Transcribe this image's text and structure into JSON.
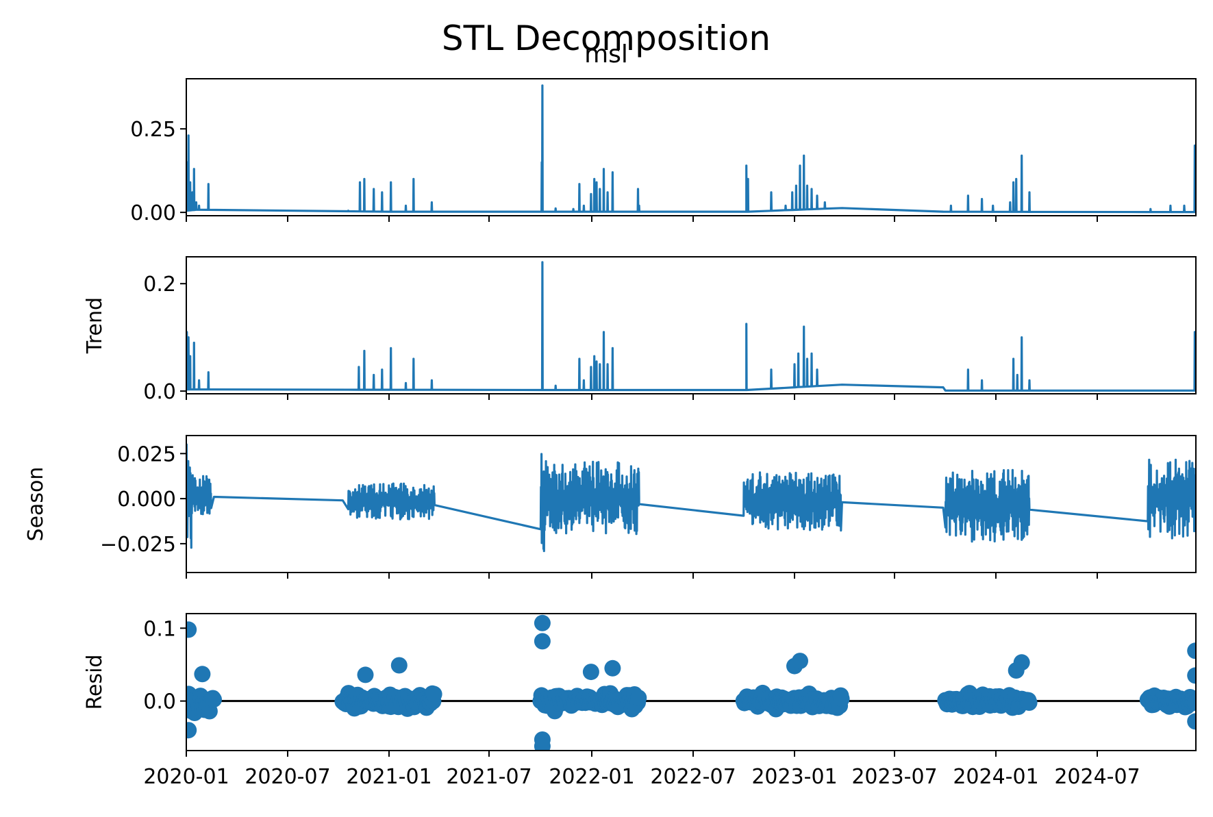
{
  "figure": {
    "title": "STL Decomposition",
    "subtitle": "msl"
  },
  "colors": {
    "series": "#1f77b4",
    "axes": "#000000",
    "background": "#ffffff",
    "zero_line": "#000000"
  },
  "chart_data": [
    {
      "type": "line",
      "panel": "observed",
      "title": "msl",
      "ylabel": "",
      "ylim": [
        -0.01,
        0.4
      ],
      "yticks": [
        0.0,
        0.25
      ],
      "ytick_labels": [
        "0.00",
        "0.25"
      ],
      "x_type": "date",
      "x_range": [
        "2020-01-01",
        "2024-12-31"
      ],
      "xtick_labels": [],
      "baseline": [
        [
          "2020-01-01",
          0.005
        ],
        [
          "2020-01-20",
          0.008
        ],
        [
          "2021-01-01",
          0.002
        ],
        [
          "2021-10-20",
          0.002
        ],
        [
          "2022-10-10",
          0.002
        ],
        [
          "2023-04-01",
          0.013
        ],
        [
          "2023-10-01",
          0.002
        ],
        [
          "2024-10-01",
          0.001
        ],
        [
          "2024-12-31",
          0.001
        ]
      ],
      "spikes": [
        [
          "2020-01-02",
          0.15
        ],
        [
          "2020-01-05",
          0.23
        ],
        [
          "2020-01-08",
          0.09
        ],
        [
          "2020-01-12",
          0.06
        ],
        [
          "2020-01-15",
          0.13
        ],
        [
          "2020-01-19",
          0.03
        ],
        [
          "2020-01-24",
          0.02
        ],
        [
          "2020-02-10",
          0.085
        ],
        [
          "2020-10-20",
          0.005
        ],
        [
          "2020-11-10",
          0.09
        ],
        [
          "2020-11-18",
          0.1
        ],
        [
          "2020-12-05",
          0.07
        ],
        [
          "2020-12-20",
          0.06
        ],
        [
          "2021-01-05",
          0.09
        ],
        [
          "2021-02-01",
          0.02
        ],
        [
          "2021-02-15",
          0.1
        ],
        [
          "2021-03-20",
          0.03
        ],
        [
          "2021-10-05",
          0.15
        ],
        [
          "2021-10-06",
          0.38
        ],
        [
          "2021-10-30",
          0.012
        ],
        [
          "2021-12-01",
          0.01
        ],
        [
          "2021-12-12",
          0.085
        ],
        [
          "2021-12-20",
          0.02
        ],
        [
          "2022-01-02",
          0.055
        ],
        [
          "2022-01-08",
          0.1
        ],
        [
          "2022-01-12",
          0.09
        ],
        [
          "2022-01-18",
          0.07
        ],
        [
          "2022-01-25",
          0.13
        ],
        [
          "2022-02-01",
          0.06
        ],
        [
          "2022-02-10",
          0.12
        ],
        [
          "2022-03-28",
          0.07
        ],
        [
          "2022-03-30",
          0.02
        ],
        [
          "2022-10-10",
          0.14
        ],
        [
          "2022-10-13",
          0.1
        ],
        [
          "2022-11-24",
          0.06
        ],
        [
          "2022-12-20",
          0.02
        ],
        [
          "2023-01-01",
          0.06
        ],
        [
          "2023-01-08",
          0.08
        ],
        [
          "2023-01-15",
          0.14
        ],
        [
          "2023-01-22",
          0.17
        ],
        [
          "2023-01-28",
          0.08
        ],
        [
          "2023-02-05",
          0.07
        ],
        [
          "2023-02-15",
          0.05
        ],
        [
          "2023-03-01",
          0.03
        ],
        [
          "2023-10-15",
          0.02
        ],
        [
          "2023-11-15",
          0.05
        ],
        [
          "2023-12-10",
          0.04
        ],
        [
          "2023-12-30",
          0.02
        ],
        [
          "2024-01-30",
          0.03
        ],
        [
          "2024-02-05",
          0.09
        ],
        [
          "2024-02-10",
          0.1
        ],
        [
          "2024-02-20",
          0.17
        ],
        [
          "2024-03-05",
          0.06
        ],
        [
          "2024-10-10",
          0.01
        ],
        [
          "2024-11-15",
          0.02
        ],
        [
          "2024-12-10",
          0.02
        ],
        [
          "2024-12-29",
          0.2
        ],
        [
          "2024-12-30",
          0.12
        ]
      ]
    },
    {
      "type": "line",
      "panel": "trend",
      "title": "",
      "ylabel": "Trend",
      "ylim": [
        -0.005,
        0.25
      ],
      "yticks": [
        0.0,
        0.2
      ],
      "ytick_labels": [
        "0.0",
        "0.2"
      ],
      "x_type": "date",
      "x_range": [
        "2020-01-01",
        "2024-12-31"
      ],
      "xtick_labels": [],
      "baseline": [
        [
          "2020-01-01",
          0.003
        ],
        [
          "2020-02-20",
          0.003
        ],
        [
          "2021-10-20",
          0.002
        ],
        [
          "2022-10-10",
          0.002
        ],
        [
          "2023-04-01",
          0.012
        ],
        [
          "2023-10-01",
          0.007
        ],
        [
          "2023-10-05",
          0.001
        ],
        [
          "2024-12-31",
          0.001
        ]
      ],
      "spikes": [
        [
          "2020-01-02",
          0.11
        ],
        [
          "2020-01-05",
          0.1
        ],
        [
          "2020-01-08",
          0.065
        ],
        [
          "2020-01-15",
          0.09
        ],
        [
          "2020-01-24",
          0.02
        ],
        [
          "2020-02-10",
          0.035
        ],
        [
          "2020-11-08",
          0.045
        ],
        [
          "2020-11-18",
          0.075
        ],
        [
          "2020-12-05",
          0.03
        ],
        [
          "2020-12-20",
          0.04
        ],
        [
          "2021-01-05",
          0.08
        ],
        [
          "2021-02-01",
          0.015
        ],
        [
          "2021-02-15",
          0.06
        ],
        [
          "2021-03-20",
          0.02
        ],
        [
          "2021-10-06",
          0.24
        ],
        [
          "2021-10-30",
          0.01
        ],
        [
          "2021-12-12",
          0.06
        ],
        [
          "2021-12-20",
          0.02
        ],
        [
          "2022-01-02",
          0.045
        ],
        [
          "2022-01-08",
          0.065
        ],
        [
          "2022-01-12",
          0.055
        ],
        [
          "2022-01-18",
          0.05
        ],
        [
          "2022-01-25",
          0.11
        ],
        [
          "2022-02-01",
          0.05
        ],
        [
          "2022-02-10",
          0.08
        ],
        [
          "2022-10-10",
          0.125
        ],
        [
          "2022-11-24",
          0.04
        ],
        [
          "2023-01-05",
          0.05
        ],
        [
          "2023-01-12",
          0.07
        ],
        [
          "2023-01-22",
          0.12
        ],
        [
          "2023-01-28",
          0.06
        ],
        [
          "2023-02-05",
          0.07
        ],
        [
          "2023-02-15",
          0.04
        ],
        [
          "2023-11-15",
          0.04
        ],
        [
          "2023-12-10",
          0.02
        ],
        [
          "2024-02-05",
          0.06
        ],
        [
          "2024-02-12",
          0.03
        ],
        [
          "2024-02-20",
          0.1
        ],
        [
          "2024-03-05",
          0.02
        ],
        [
          "2024-12-29",
          0.11
        ]
      ]
    },
    {
      "type": "line",
      "panel": "seasonal",
      "title": "",
      "ylabel": "Season",
      "ylim": [
        -0.041,
        0.035
      ],
      "yticks": [
        -0.025,
        0.0,
        0.025
      ],
      "ytick_labels": [
        "−0.025",
        "0.000",
        "0.025"
      ],
      "x_type": "date",
      "x_range": [
        "2020-01-01",
        "2024-12-31"
      ],
      "xtick_labels": [],
      "baseline": [
        [
          "2020-01-01",
          0.001
        ],
        [
          "2020-02-20",
          0.001
        ],
        [
          "2020-10-10",
          -0.001
        ],
        [
          "2021-03-20",
          -0.002
        ],
        [
          "2021-10-06",
          0.001
        ],
        [
          "2022-03-30",
          0.0
        ],
        [
          "2022-10-10",
          -0.001
        ],
        [
          "2023-04-01",
          -0.002
        ],
        [
          "2023-10-01",
          -0.005
        ],
        [
          "2024-10-10",
          0.0
        ],
        [
          "2024-12-31",
          0.0
        ]
      ],
      "oscillations": [
        {
          "start": "2020-01-01",
          "end": "2020-01-10",
          "amplitude": 0.03
        },
        {
          "start": "2020-01-10",
          "end": "2020-02-15",
          "amplitude": 0.012
        },
        {
          "start": "2020-10-20",
          "end": "2021-03-25",
          "amplitude": 0.01
        },
        {
          "start": "2021-10-03",
          "end": "2021-10-10",
          "amplitude": 0.036
        },
        {
          "start": "2021-10-10",
          "end": "2022-03-30",
          "amplitude": 0.02
        },
        {
          "start": "2022-10-05",
          "end": "2023-03-30",
          "amplitude": 0.016
        },
        {
          "start": "2023-10-05",
          "end": "2024-03-05",
          "amplitude": 0.02
        },
        {
          "start": "2024-10-05",
          "end": "2024-12-31",
          "amplitude": 0.022
        }
      ]
    },
    {
      "type": "scatter",
      "panel": "resid",
      "title": "",
      "ylabel": "Resid",
      "ylim": [
        -0.068,
        0.12
      ],
      "yticks": [
        0.0,
        0.1
      ],
      "ytick_labels": [
        "0.0",
        "0.1"
      ],
      "x_type": "date",
      "x_range": [
        "2020-01-01",
        "2024-12-31"
      ],
      "xtick_labels": [
        "2020-01",
        "2020-07",
        "2021-01",
        "2021-07",
        "2022-01",
        "2022-07",
        "2023-01",
        "2023-07",
        "2024-01",
        "2024-07"
      ],
      "zero_line": true,
      "clusters": [
        {
          "start": "2020-01-01",
          "end": "2020-02-20",
          "spread": 0.04
        },
        {
          "start": "2020-10-10",
          "end": "2021-03-25",
          "spread": 0.025
        },
        {
          "start": "2021-10-03",
          "end": "2022-03-30",
          "spread": 0.03
        },
        {
          "start": "2022-10-05",
          "end": "2023-04-01",
          "spread": 0.025
        },
        {
          "start": "2023-10-05",
          "end": "2024-03-05",
          "spread": 0.025
        },
        {
          "start": "2024-10-05",
          "end": "2024-12-31",
          "spread": 0.02
        }
      ],
      "outliers": [
        [
          "2020-01-05",
          0.098
        ],
        [
          "2020-01-05",
          -0.04
        ],
        [
          "2020-01-30",
          0.037
        ],
        [
          "2020-11-20",
          0.036
        ],
        [
          "2021-01-20",
          0.049
        ],
        [
          "2021-10-06",
          0.107
        ],
        [
          "2021-10-06",
          0.082
        ],
        [
          "2021-10-06",
          -0.053
        ],
        [
          "2021-10-06",
          -0.062
        ],
        [
          "2022-02-10",
          0.045
        ],
        [
          "2022-01-02",
          0.04
        ],
        [
          "2023-01-05",
          0.048
        ],
        [
          "2023-01-15",
          0.055
        ],
        [
          "2024-02-20",
          0.053
        ],
        [
          "2024-02-10",
          0.042
        ],
        [
          "2024-12-30",
          0.069
        ],
        [
          "2024-12-30",
          0.035
        ],
        [
          "2024-12-30",
          -0.028
        ]
      ]
    }
  ]
}
